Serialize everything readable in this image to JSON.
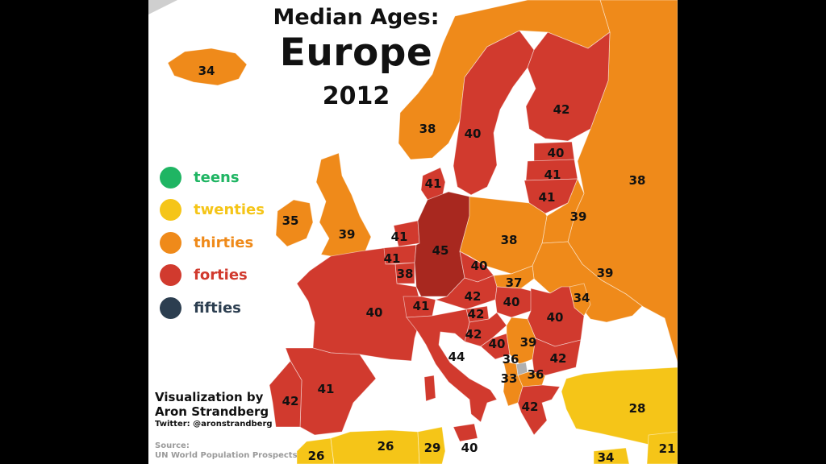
{
  "title": {
    "line1": "Median Ages:",
    "line2": "Europe",
    "line3": "2012"
  },
  "legend": [
    {
      "label": "teens",
      "color": "#1fb563"
    },
    {
      "label": "twenties",
      "color": "#f5c518"
    },
    {
      "label": "thirties",
      "color": "#ef8a1a"
    },
    {
      "label": "forties",
      "color": "#d13a2e"
    },
    {
      "label": "fifties",
      "color": "#2c3e50"
    }
  ],
  "credit": {
    "line1": "Visualization by",
    "line2": "Aron Strandberg",
    "twitter": "Twitter: @aronstrandberg"
  },
  "source": {
    "label": "Source:",
    "text": "UN World Population Prospects"
  },
  "colors": {
    "sea": "#ffffff",
    "background": "#000000",
    "germany": "#a8281f",
    "forties": "#d13a2e",
    "thirties": "#ef8a1a",
    "twenties": "#f5c518",
    "unknown": "#b0b0b0"
  },
  "values": [
    {
      "region": "iceland",
      "value": "34"
    },
    {
      "region": "norway",
      "value": "38"
    },
    {
      "region": "sweden",
      "value": "40"
    },
    {
      "region": "finland",
      "value": "42"
    },
    {
      "region": "estonia",
      "value": "40"
    },
    {
      "region": "latvia",
      "value": "41"
    },
    {
      "region": "lithuania",
      "value": "41"
    },
    {
      "region": "denmark",
      "value": "41"
    },
    {
      "region": "russia",
      "value": "38"
    },
    {
      "region": "ireland",
      "value": "35"
    },
    {
      "region": "united-kingdom",
      "value": "39"
    },
    {
      "region": "belarus",
      "value": "39"
    },
    {
      "region": "netherlands",
      "value": "41"
    },
    {
      "region": "belgium",
      "value": "41"
    },
    {
      "region": "luxembourg",
      "value": "38"
    },
    {
      "region": "germany",
      "value": "45"
    },
    {
      "region": "poland",
      "value": "38"
    },
    {
      "region": "czech-republic",
      "value": "40"
    },
    {
      "region": "ukraine",
      "value": "39"
    },
    {
      "region": "slovakia",
      "value": "37"
    },
    {
      "region": "moldova",
      "value": "34"
    },
    {
      "region": "france",
      "value": "40"
    },
    {
      "region": "switzerland",
      "value": "41"
    },
    {
      "region": "austria",
      "value": "42"
    },
    {
      "region": "hungary",
      "value": "40"
    },
    {
      "region": "slovenia",
      "value": "42"
    },
    {
      "region": "croatia",
      "value": "42"
    },
    {
      "region": "romania",
      "value": "40"
    },
    {
      "region": "bosnia",
      "value": "40"
    },
    {
      "region": "serbia",
      "value": "39"
    },
    {
      "region": "italy",
      "value": "44"
    },
    {
      "region": "montenegro",
      "value": "36"
    },
    {
      "region": "bulgaria",
      "value": "42"
    },
    {
      "region": "albania",
      "value": "33"
    },
    {
      "region": "macedonia",
      "value": "36"
    },
    {
      "region": "spain",
      "value": "41"
    },
    {
      "region": "portugal",
      "value": "42"
    },
    {
      "region": "greece",
      "value": "42"
    },
    {
      "region": "turkey",
      "value": "28"
    },
    {
      "region": "morocco",
      "value": "26"
    },
    {
      "region": "algeria",
      "value": "26"
    },
    {
      "region": "tunisia",
      "value": "29"
    },
    {
      "region": "malta",
      "value": "40"
    },
    {
      "region": "cyprus",
      "value": "34"
    },
    {
      "region": "syria",
      "value": "21"
    }
  ]
}
